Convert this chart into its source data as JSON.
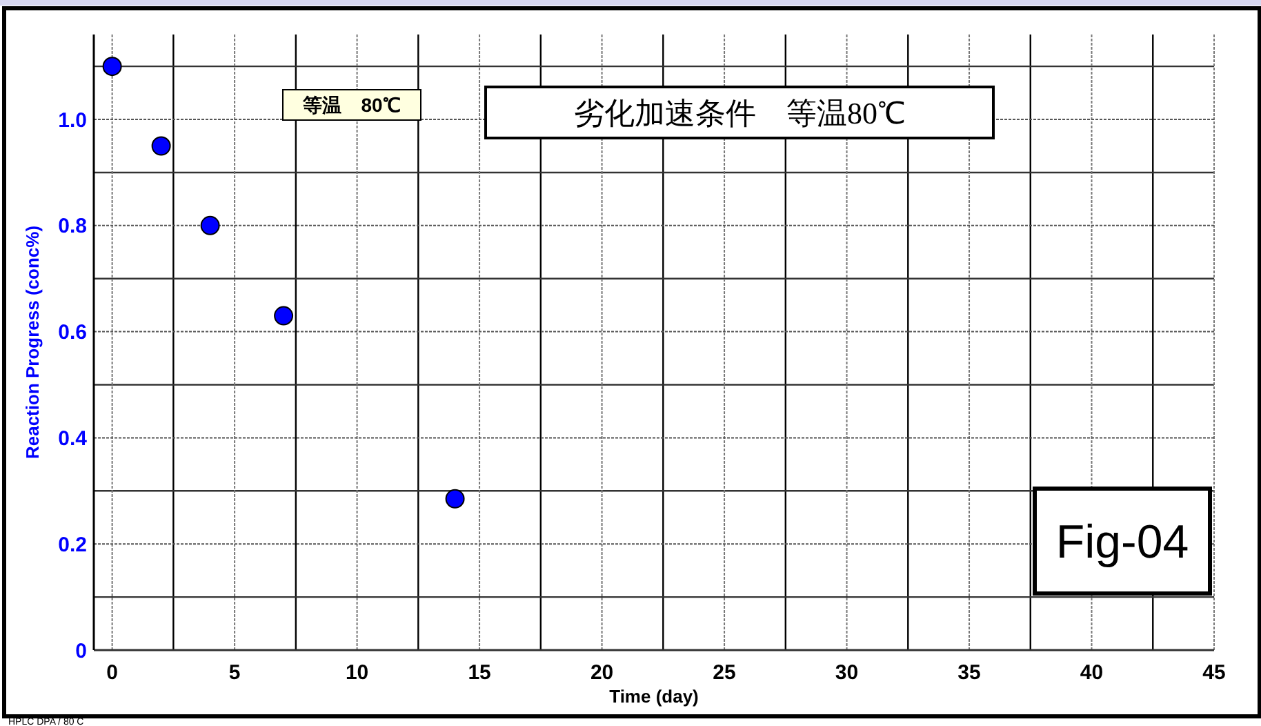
{
  "chart_data": {
    "type": "scatter",
    "title": "劣化加速条件　等温80℃",
    "xlabel": "Time (day)",
    "ylabel": "Reaction Progress (conc%)",
    "x": [
      0,
      2,
      4,
      7,
      14
    ],
    "series": [
      {
        "color": "#0000ff",
        "values": [
          1.1,
          0.95,
          0.8,
          0.63,
          0.285
        ]
      }
    ],
    "xlim": [
      -0.75,
      45
    ],
    "xticks": [
      0,
      5,
      10,
      15,
      20,
      25,
      30,
      35,
      40,
      45
    ],
    "ylim": [
      0,
      1.16
    ],
    "yticks": [
      0,
      0.2,
      0.4,
      0.6,
      0.8,
      {
        "value": 1,
        "label": "1.0"
      }
    ],
    "grid": true,
    "marker": "circle",
    "annotations": [
      "等温　80℃",
      "Fig-04",
      "HPLC DPA / 80 C"
    ]
  }
}
